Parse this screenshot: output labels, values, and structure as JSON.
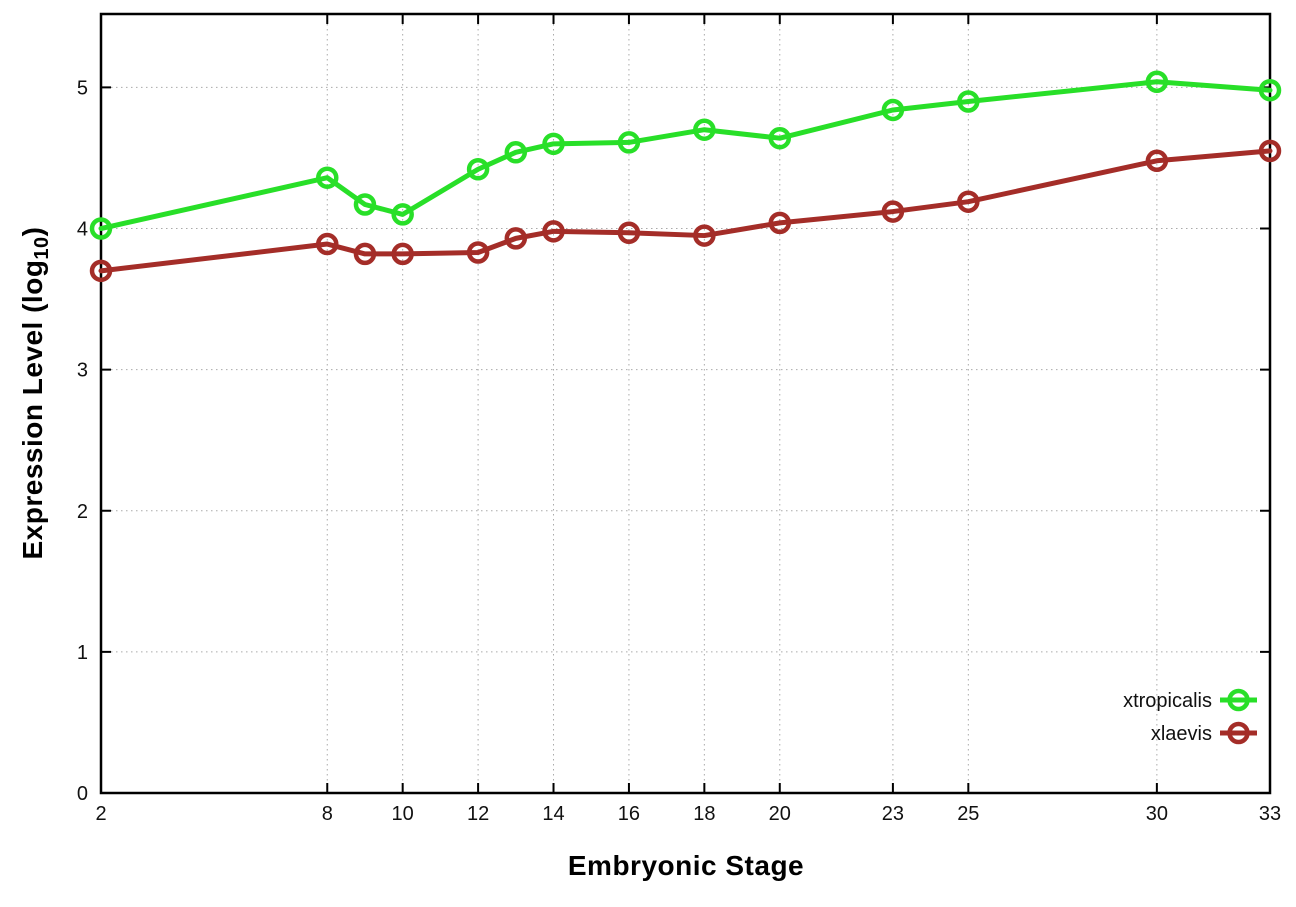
{
  "chart_data": {
    "type": "line",
    "title": "",
    "xlabel": "Embryonic Stage",
    "ylabel": "Expression Level (log10)",
    "ylabel_parts": {
      "main": "Expression Level (log",
      "sub": "10",
      "end": ")"
    },
    "xlim": [
      2,
      33
    ],
    "ylim": [
      0,
      5.52
    ],
    "xticks": [
      2,
      8,
      10,
      12,
      14,
      16,
      18,
      20,
      23,
      25,
      30,
      33
    ],
    "yticks": [
      0,
      1,
      2,
      3,
      4,
      5
    ],
    "grid": true,
    "legend_position": "inside-bottom-right",
    "x": [
      2,
      8,
      9,
      10,
      12,
      13,
      14,
      16,
      18,
      20,
      23,
      25,
      30,
      33
    ],
    "series": [
      {
        "name": "xtropicalis",
        "color": "#28df28",
        "values": [
          4.0,
          4.36,
          4.17,
          4.1,
          4.42,
          4.54,
          4.6,
          4.61,
          4.7,
          4.64,
          4.84,
          4.9,
          5.04,
          4.98
        ]
      },
      {
        "name": "xlaevis",
        "color": "#a42d28",
        "values": [
          3.7,
          3.89,
          3.82,
          3.82,
          3.83,
          3.93,
          3.98,
          3.97,
          3.95,
          4.04,
          4.12,
          4.19,
          4.48,
          4.55
        ]
      }
    ],
    "axis_color": "#000000",
    "grid_color": "#aaaaaa",
    "tick_label_color": "#111111"
  }
}
